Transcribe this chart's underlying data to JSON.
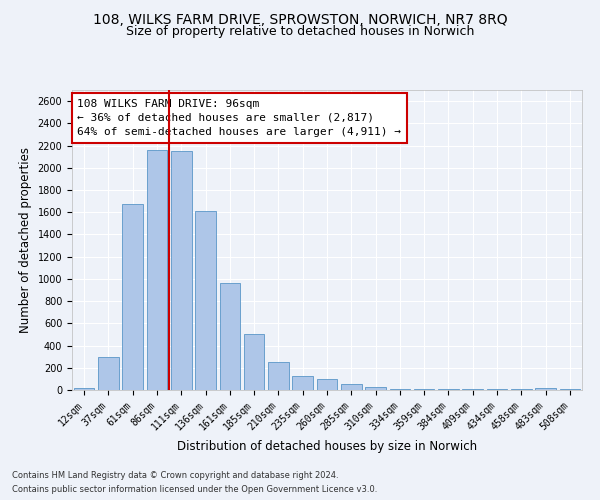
{
  "title1": "108, WILKS FARM DRIVE, SPROWSTON, NORWICH, NR7 8RQ",
  "title2": "Size of property relative to detached houses in Norwich",
  "xlabel": "Distribution of detached houses by size in Norwich",
  "ylabel": "Number of detached properties",
  "categories": [
    "12sqm",
    "37sqm",
    "61sqm",
    "86sqm",
    "111sqm",
    "136sqm",
    "161sqm",
    "185sqm",
    "210sqm",
    "235sqm",
    "260sqm",
    "285sqm",
    "310sqm",
    "334sqm",
    "359sqm",
    "384sqm",
    "409sqm",
    "434sqm",
    "458sqm",
    "483sqm",
    "508sqm"
  ],
  "values": [
    22,
    300,
    1670,
    2160,
    2155,
    1610,
    960,
    500,
    250,
    125,
    100,
    50,
    30,
    12,
    12,
    8,
    8,
    5,
    5,
    20,
    5
  ],
  "bar_color": "#aec6e8",
  "bar_edge_color": "#5a96c8",
  "vline_color": "#cc0000",
  "annotation_text": "108 WILKS FARM DRIVE: 96sqm\n← 36% of detached houses are smaller (2,817)\n64% of semi-detached houses are larger (4,911) →",
  "annotation_box_color": "#ffffff",
  "annotation_box_edge_color": "#cc0000",
  "ylim": [
    0,
    2700
  ],
  "yticks": [
    0,
    200,
    400,
    600,
    800,
    1000,
    1200,
    1400,
    1600,
    1800,
    2000,
    2200,
    2400,
    2600
  ],
  "footnote1": "Contains HM Land Registry data © Crown copyright and database right 2024.",
  "footnote2": "Contains public sector information licensed under the Open Government Licence v3.0.",
  "background_color": "#eef2f9",
  "grid_color": "#ffffff",
  "title_fontsize": 10,
  "subtitle_fontsize": 9,
  "axis_label_fontsize": 8.5,
  "tick_fontsize": 7,
  "annotation_fontsize": 8,
  "footnote_fontsize": 6
}
